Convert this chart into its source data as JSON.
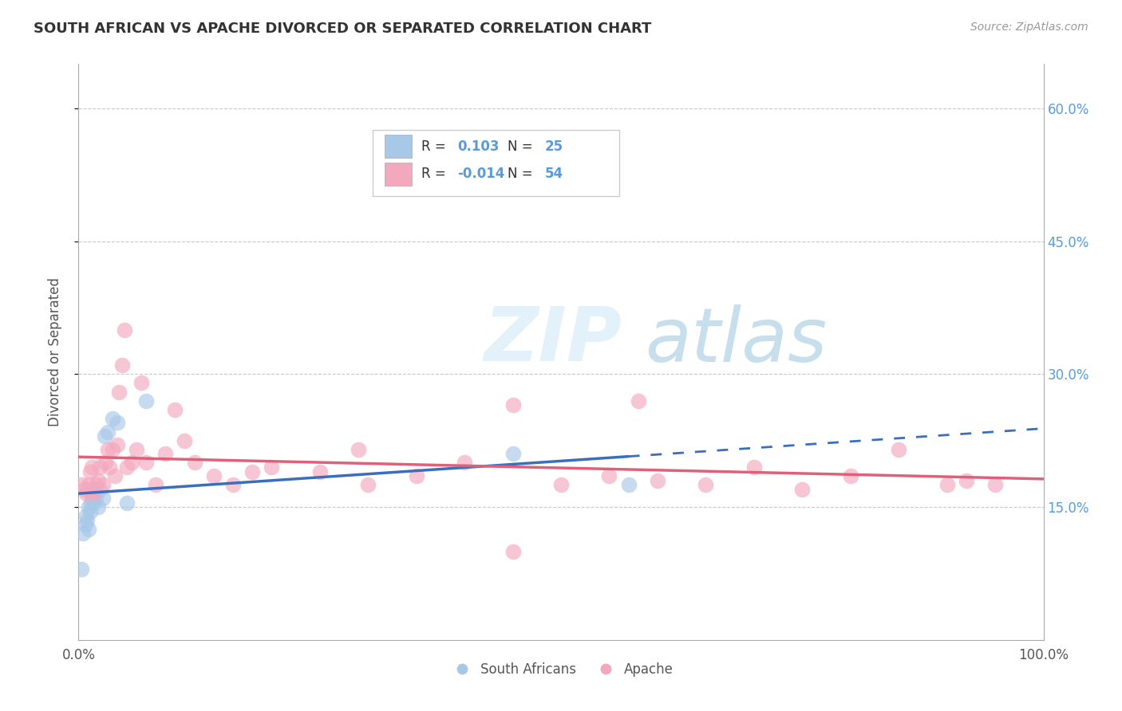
{
  "title": "SOUTH AFRICAN VS APACHE DIVORCED OR SEPARATED CORRELATION CHART",
  "source": "Source: ZipAtlas.com",
  "ylabel": "Divorced or Separated",
  "legend_labels": [
    "South Africans",
    "Apache"
  ],
  "r_sa": 0.103,
  "n_sa": 25,
  "r_apache": -0.014,
  "n_apache": 54,
  "blue_color": "#a8c8e8",
  "pink_color": "#f4a8be",
  "blue_line_color": "#3a6fbd",
  "pink_line_color": "#e0607a",
  "watermark_zip": "ZIP",
  "watermark_atlas": "atlas",
  "xlim": [
    0.0,
    1.0
  ],
  "ylim": [
    0.0,
    0.65
  ],
  "xtick_labels": [
    "0.0%",
    "100.0%"
  ],
  "yticks": [
    0.15,
    0.3,
    0.45,
    0.6
  ],
  "ytick_labels": [
    "15.0%",
    "30.0%",
    "45.0%",
    "60.0%"
  ],
  "grid_color": "#c8c8c8",
  "right_tick_color": "#5b9bd5",
  "sa_x": [
    0.003,
    0.005,
    0.007,
    0.008,
    0.009,
    0.01,
    0.01,
    0.012,
    0.013,
    0.014,
    0.015,
    0.016,
    0.017,
    0.018,
    0.02,
    0.022,
    0.025,
    0.027,
    0.03,
    0.035,
    0.04,
    0.05,
    0.07,
    0.45,
    0.57
  ],
  "sa_y": [
    0.08,
    0.12,
    0.13,
    0.14,
    0.135,
    0.125,
    0.15,
    0.145,
    0.155,
    0.16,
    0.165,
    0.155,
    0.17,
    0.16,
    0.15,
    0.17,
    0.16,
    0.23,
    0.235,
    0.25,
    0.245,
    0.155,
    0.27,
    0.21,
    0.175
  ],
  "apache_x": [
    0.003,
    0.006,
    0.008,
    0.01,
    0.012,
    0.014,
    0.015,
    0.016,
    0.018,
    0.02,
    0.022,
    0.025,
    0.028,
    0.03,
    0.032,
    0.035,
    0.038,
    0.04,
    0.042,
    0.045,
    0.048,
    0.05,
    0.055,
    0.06,
    0.065,
    0.07,
    0.08,
    0.09,
    0.1,
    0.11,
    0.12,
    0.14,
    0.16,
    0.18,
    0.2,
    0.25,
    0.3,
    0.35,
    0.4,
    0.45,
    0.5,
    0.55,
    0.6,
    0.65,
    0.7,
    0.75,
    0.8,
    0.85,
    0.9,
    0.92,
    0.95,
    0.45,
    0.29,
    0.58
  ],
  "apache_y": [
    0.175,
    0.17,
    0.165,
    0.175,
    0.19,
    0.195,
    0.17,
    0.165,
    0.175,
    0.18,
    0.195,
    0.175,
    0.2,
    0.215,
    0.195,
    0.215,
    0.185,
    0.22,
    0.28,
    0.31,
    0.35,
    0.195,
    0.2,
    0.215,
    0.29,
    0.2,
    0.175,
    0.21,
    0.26,
    0.225,
    0.2,
    0.185,
    0.175,
    0.19,
    0.195,
    0.19,
    0.175,
    0.185,
    0.2,
    0.1,
    0.175,
    0.185,
    0.18,
    0.175,
    0.195,
    0.17,
    0.185,
    0.215,
    0.175,
    0.18,
    0.175,
    0.265,
    0.215,
    0.27
  ]
}
